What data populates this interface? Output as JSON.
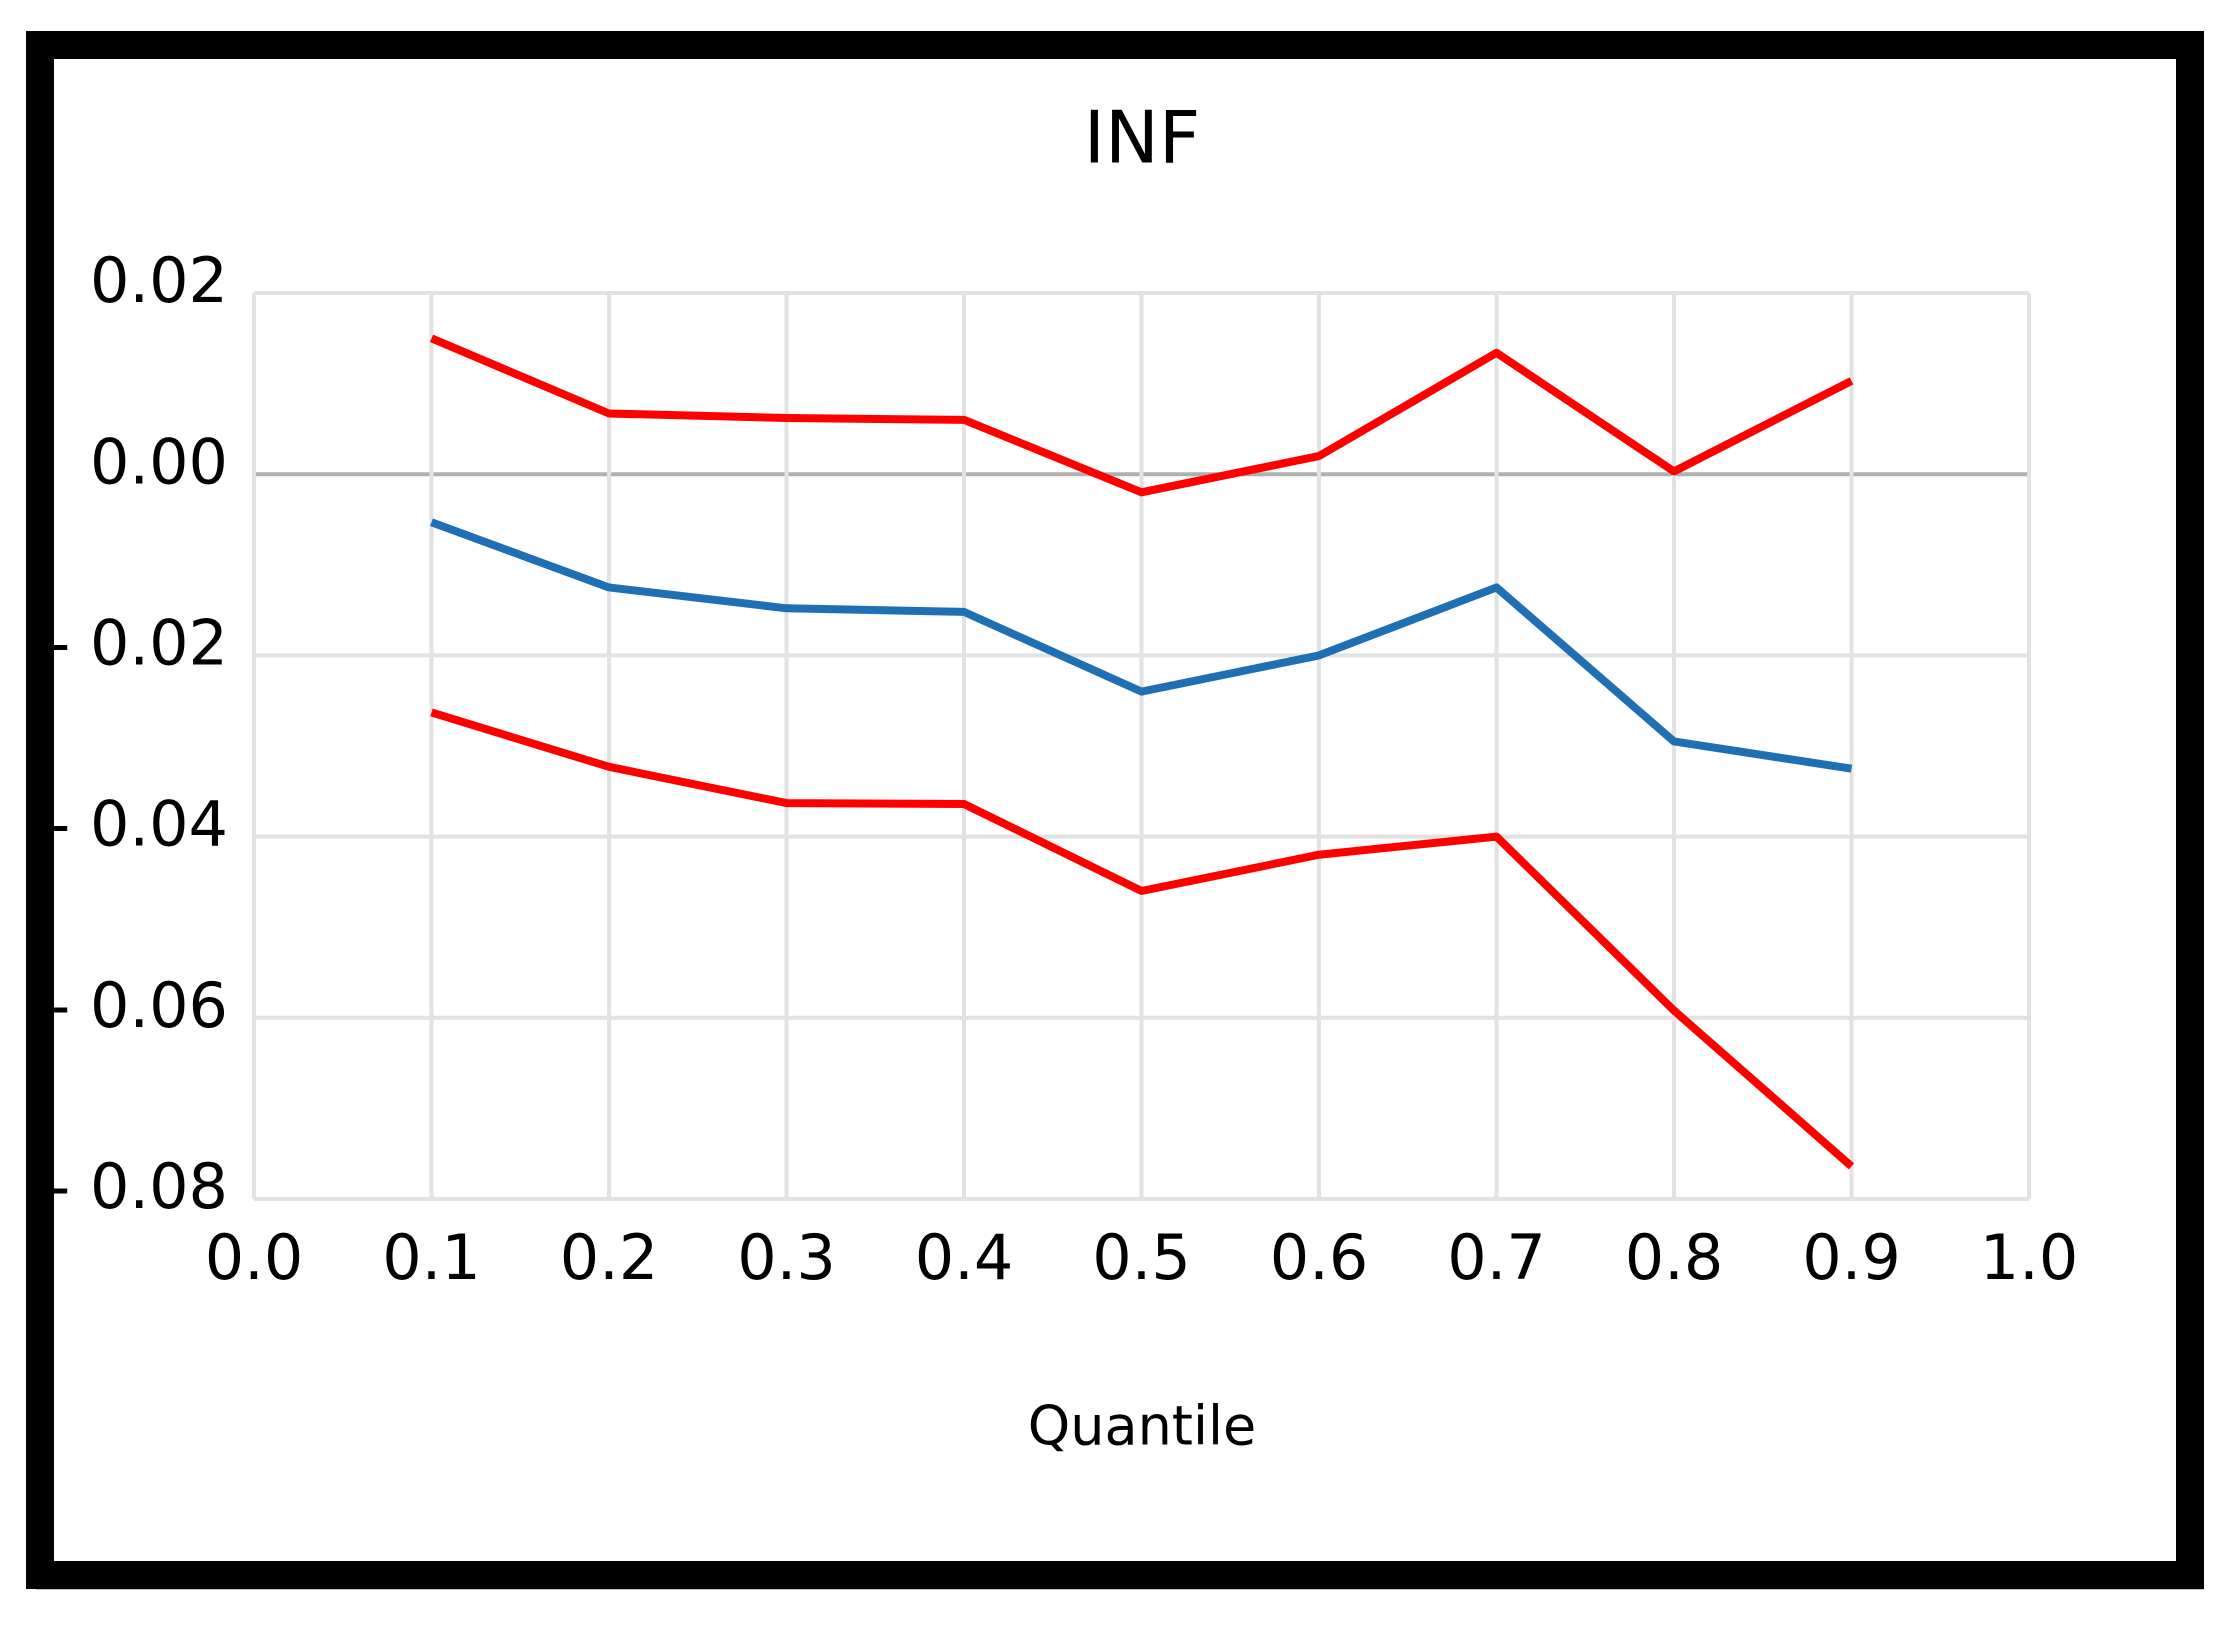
{
  "chart_data": {
    "type": "line",
    "title": "INF",
    "x_label": "Quantile",
    "x": [
      0.1,
      0.2,
      0.3,
      0.4,
      0.5,
      0.6,
      0.7,
      0.8,
      0.9
    ],
    "series": [
      {
        "color": "#ff0000",
        "values": [
          0.015,
          0.0067,
          0.0062,
          0.006,
          -0.002,
          0.002,
          0.0134,
          0.0003,
          0.0103
        ]
      },
      {
        "color": "#1f6fb4",
        "values": [
          -0.0053,
          -0.0125,
          -0.0148,
          -0.0152,
          -0.024,
          -0.02,
          -0.0125,
          -0.0295,
          -0.0325
        ]
      },
      {
        "color": "#ff0000",
        "values": [
          -0.0263,
          -0.0323,
          -0.0363,
          -0.0364,
          -0.046,
          -0.042,
          -0.04,
          -0.0592,
          -0.0764
        ]
      }
    ],
    "xlim": [
      0,
      1
    ],
    "xticks": [
      {
        "value": 0,
        "label": "0.0"
      },
      0.1,
      0.2,
      0.3,
      0.4,
      0.5,
      0.6,
      0.7,
      0.8,
      0.9,
      {
        "value": 1,
        "label": "1.0"
      }
    ],
    "ylim": [
      -0.08,
      0.02
    ],
    "yticks": [
      {
        "value": -0.08,
        "label": "- 0.08"
      },
      {
        "value": -0.06,
        "label": "- 0.06"
      },
      {
        "value": -0.04,
        "label": "- 0.04"
      },
      {
        "value": -0.02,
        "label": "- 0.02"
      },
      {
        "value": 0,
        "label": "0.00"
      },
      0.02
    ],
    "grid": true
  }
}
